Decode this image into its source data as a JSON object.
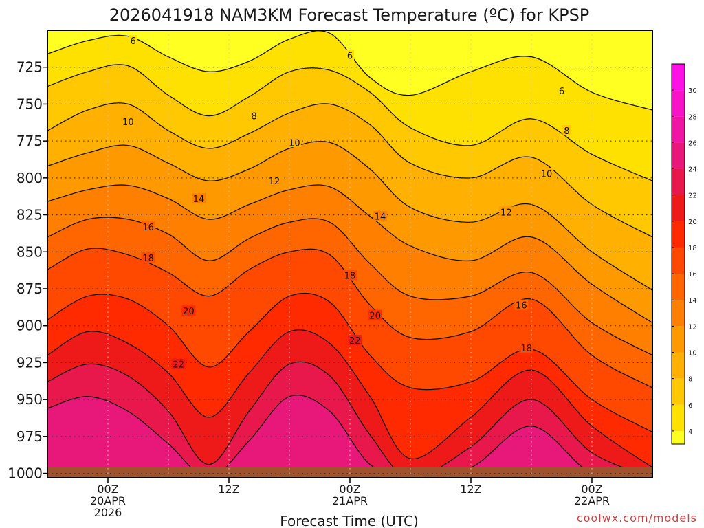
{
  "chart_data": {
    "type": "heatmap",
    "title": "2026041918 NAM3KM Forecast Temperature (ºC) for KPSP",
    "xlabel": "Forecast Time (UTC)",
    "ylabel": "",
    "x_range_hours": [
      -6,
      54
    ],
    "x_ticks": [
      {
        "hour": 0,
        "lines": [
          "00Z",
          "20APR",
          "2026"
        ]
      },
      {
        "hour": 12,
        "lines": [
          "12Z"
        ]
      },
      {
        "hour": 24,
        "lines": [
          "00Z",
          "21APR"
        ]
      },
      {
        "hour": 36,
        "lines": [
          "12Z"
        ]
      },
      {
        "hour": 48,
        "lines": [
          "00Z",
          "22APR"
        ]
      }
    ],
    "y_range_hpa": [
      700,
      1003
    ],
    "y_ticks": [
      725,
      750,
      775,
      800,
      825,
      850,
      875,
      900,
      925,
      950,
      975,
      1000
    ],
    "grid": true,
    "colorbar": {
      "ticks": [
        4,
        6,
        8,
        10,
        12,
        14,
        16,
        18,
        20,
        22,
        24,
        26,
        28,
        30
      ],
      "bands": [
        {
          "from": 3,
          "to": 4,
          "color": "#ffff22"
        },
        {
          "from": 4,
          "to": 6,
          "color": "#ffe100"
        },
        {
          "from": 6,
          "to": 8,
          "color": "#ffc800"
        },
        {
          "from": 8,
          "to": 10,
          "color": "#ffb000"
        },
        {
          "from": 10,
          "to": 12,
          "color": "#ff9900"
        },
        {
          "from": 12,
          "to": 14,
          "color": "#ff7f00"
        },
        {
          "from": 14,
          "to": 16,
          "color": "#ff6600"
        },
        {
          "from": 16,
          "to": 18,
          "color": "#ff4800"
        },
        {
          "from": 18,
          "to": 20,
          "color": "#ff2a00"
        },
        {
          "from": 20,
          "to": 22,
          "color": "#ee1a1a"
        },
        {
          "from": 22,
          "to": 24,
          "color": "#e8184c"
        },
        {
          "from": 24,
          "to": 26,
          "color": "#e8187a"
        },
        {
          "from": 26,
          "to": 28,
          "color": "#f015a4"
        },
        {
          "from": 28,
          "to": 30,
          "color": "#f812c8"
        },
        {
          "from": 30,
          "to": 32,
          "color": "#ff10e6"
        }
      ]
    },
    "contours": [
      {
        "level": 6,
        "pressure_hpa": [
          716,
          707,
          704,
          718,
          728,
          721,
          706,
          702,
          732,
          744,
          728,
          718,
          742,
          754
        ]
      },
      {
        "level": 8,
        "pressure_hpa": [
          738,
          728,
          724,
          744,
          758,
          745,
          728,
          727,
          742,
          766,
          778,
          760,
          784,
          802
        ]
      },
      {
        "level": 10,
        "pressure_hpa": [
          768,
          754,
          750,
          768,
          780,
          770,
          756,
          750,
          764,
          790,
          800,
          786,
          818,
          840
        ]
      },
      {
        "level": 12,
        "pressure_hpa": [
          792,
          783,
          778,
          790,
          802,
          794,
          780,
          776,
          794,
          820,
          830,
          818,
          850,
          876
        ]
      },
      {
        "level": 14,
        "pressure_hpa": [
          816,
          808,
          805,
          814,
          828,
          818,
          808,
          806,
          826,
          846,
          856,
          840,
          872,
          898
        ]
      },
      {
        "level": 16,
        "pressure_hpa": [
          840,
          828,
          828,
          838,
          856,
          841,
          830,
          830,
          858,
          880,
          880,
          864,
          898,
          920
        ]
      },
      {
        "level": 18,
        "pressure_hpa": [
          862,
          848,
          852,
          864,
          880,
          862,
          850,
          852,
          886,
          908,
          904,
          882,
          920,
          942
        ]
      },
      {
        "level": 20,
        "pressure_hpa": [
          896,
          880,
          882,
          900,
          928,
          904,
          880,
          884,
          920,
          942,
          938,
          916,
          950,
          972
        ]
      },
      {
        "level": 22,
        "pressure_hpa": [
          920,
          904,
          912,
          932,
          962,
          932,
          904,
          912,
          948,
          990,
          962,
          930,
          968,
          996
        ]
      },
      {
        "level": 24,
        "pressure_hpa": [
          938,
          926,
          934,
          958,
          994,
          958,
          926,
          934,
          974,
          1003,
          982,
          950,
          986,
          1003
        ]
      },
      {
        "level": 26,
        "pressure_hpa": [
          956,
          948,
          958,
          980,
          1003,
          978,
          948,
          958,
          994,
          1003,
          996,
          968,
          1000,
          1003
        ]
      }
    ],
    "contour_hours": [
      -6,
      -2,
      2,
      6,
      10,
      14,
      18,
      22,
      26,
      30,
      36,
      42,
      48,
      54
    ],
    "contour_labels": [
      {
        "level": 6,
        "hour": 2.5,
        "pressure_hpa": 707
      },
      {
        "level": 6,
        "hour": 24.0,
        "pressure_hpa": 717
      },
      {
        "level": 6,
        "hour": 45.0,
        "pressure_hpa": 741
      },
      {
        "level": 8,
        "hour": 14.5,
        "pressure_hpa": 758
      },
      {
        "level": 8,
        "hour": 45.5,
        "pressure_hpa": 768
      },
      {
        "level": 10,
        "hour": 2.0,
        "pressure_hpa": 762
      },
      {
        "level": 10,
        "hour": 18.5,
        "pressure_hpa": 776
      },
      {
        "level": 10,
        "hour": 43.5,
        "pressure_hpa": 797
      },
      {
        "level": 12,
        "hour": 16.5,
        "pressure_hpa": 802
      },
      {
        "level": 12,
        "hour": 39.5,
        "pressure_hpa": 823
      },
      {
        "level": 14,
        "hour": 9.0,
        "pressure_hpa": 814
      },
      {
        "level": 14,
        "hour": 27.0,
        "pressure_hpa": 826
      },
      {
        "level": 16,
        "hour": 4.0,
        "pressure_hpa": 833
      },
      {
        "level": 16,
        "hour": 41.0,
        "pressure_hpa": 886
      },
      {
        "level": 18,
        "hour": 4.0,
        "pressure_hpa": 854
      },
      {
        "level": 18,
        "hour": 24.0,
        "pressure_hpa": 866
      },
      {
        "level": 18,
        "hour": 41.5,
        "pressure_hpa": 915
      },
      {
        "level": 20,
        "hour": 8.0,
        "pressure_hpa": 890
      },
      {
        "level": 20,
        "hour": 26.5,
        "pressure_hpa": 893
      },
      {
        "level": 22,
        "hour": 7.0,
        "pressure_hpa": 926
      },
      {
        "level": 22,
        "hour": 24.5,
        "pressure_hpa": 910
      }
    ],
    "ground_color": "#a0522d",
    "ground_top_hpa": 996
  },
  "credit": "coolwx.com/models"
}
